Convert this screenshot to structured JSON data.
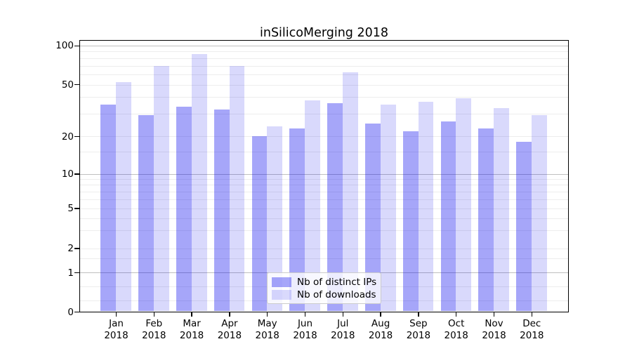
{
  "chart_data": {
    "type": "bar",
    "title": "inSilicoMerging 2018",
    "categories": [
      "Jan",
      "Feb",
      "Mar",
      "Apr",
      "May",
      "Jun",
      "Jul",
      "Aug",
      "Sep",
      "Oct",
      "Nov",
      "Dec"
    ],
    "year_label": "2018",
    "series": [
      {
        "name": "Nb of distinct IPs",
        "color": "rgba(0,0,238,0.35)",
        "values": [
          35,
          29,
          34,
          32,
          20,
          23,
          36,
          25,
          22,
          26,
          23,
          18
        ]
      },
      {
        "name": "Nb of downloads",
        "color": "rgba(0,0,238,0.15)",
        "values": [
          52,
          70,
          86,
          70,
          24,
          38,
          62,
          35,
          37,
          39,
          33,
          29
        ]
      }
    ],
    "yticks": [
      0,
      1,
      2,
      5,
      10,
      20,
      50,
      100
    ],
    "ylim": [
      0,
      105
    ],
    "yscale": "symlog-like",
    "xlabel": "",
    "ylabel": "",
    "grid": true,
    "legend_position": "lower-center",
    "colors": {
      "major_grid": "#bfbfbf",
      "minor_grid": "#ededed",
      "spine": "#000000"
    }
  }
}
